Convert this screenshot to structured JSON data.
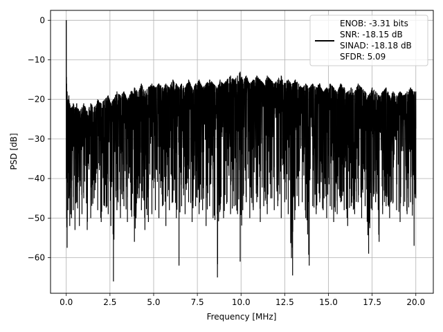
{
  "chart_data": {
    "type": "line",
    "xlabel": "Frequency [MHz]",
    "ylabel": "PSD [dB]",
    "xlim": [
      -0.9,
      21.0
    ],
    "ylim": [
      -69,
      2.5
    ],
    "x_ticks": [
      0.0,
      2.5,
      5.0,
      7.5,
      10.0,
      12.5,
      15.0,
      17.5,
      20.0
    ],
    "x_tick_labels": [
      "0.0",
      "2.5",
      "5.0",
      "7.5",
      "10.0",
      "12.5",
      "15.0",
      "17.5",
      "20.0"
    ],
    "y_ticks": [
      0,
      -10,
      -20,
      -30,
      -40,
      -50,
      -60
    ],
    "y_tick_labels": [
      "0",
      "−10",
      "−20",
      "−30",
      "−40",
      "−50",
      "−60"
    ],
    "grid": true,
    "legend_position": "top-right",
    "series": [
      {
        "name": "ENOB: -3.31 bits",
        "color": "#000000",
        "description_lines": [
          "ENOB: -3.31 bits",
          "SNR: -18.15 dB",
          "SINAD: -18.18 dB",
          "SFDR: 5.09"
        ],
        "x": [
          0.0,
          0.02,
          0.05,
          0.1,
          0.15,
          0.2,
          0.3,
          0.4,
          0.5,
          0.6,
          0.75,
          0.9,
          1.0,
          1.2,
          1.4,
          1.6,
          1.8,
          2.0,
          2.2,
          2.4,
          2.55,
          2.7,
          2.9,
          3.1,
          3.3,
          3.5,
          3.7,
          3.9,
          4.1,
          4.3,
          4.5,
          4.7,
          4.9,
          5.1,
          5.3,
          5.5,
          5.7,
          5.9,
          6.1,
          6.3,
          6.45,
          6.6,
          6.8,
          7.0,
          7.2,
          7.4,
          7.6,
          7.8,
          8.0,
          8.2,
          8.4,
          8.65,
          8.8,
          9.0,
          9.2,
          9.4,
          9.6,
          9.8,
          9.95,
          10.1,
          10.3,
          10.5,
          10.7,
          10.9,
          11.1,
          11.3,
          11.5,
          11.7,
          11.9,
          12.1,
          12.3,
          12.5,
          12.7,
          12.95,
          13.1,
          13.3,
          13.5,
          13.7,
          13.9,
          14.1,
          14.3,
          14.5,
          14.7,
          14.9,
          15.1,
          15.3,
          15.5,
          15.7,
          15.9,
          16.1,
          16.3,
          16.5,
          16.7,
          16.9,
          17.1,
          17.3,
          17.5,
          17.7,
          17.9,
          18.1,
          18.3,
          18.5,
          18.7,
          18.9,
          19.1,
          19.3,
          19.5,
          19.7,
          19.9,
          20.0
        ],
        "y_upper": [
          0.0,
          -16,
          -18,
          -20,
          -19,
          -21,
          -22,
          -21,
          -22,
          -21,
          -23,
          -22,
          -21,
          -23,
          -21,
          -22,
          -20,
          -21,
          -20,
          -19,
          -21,
          -20,
          -18,
          -19,
          -18,
          -20,
          -18,
          -17,
          -18,
          -16,
          -18,
          -17,
          -16,
          -17,
          -16,
          -17,
          -16,
          -17,
          -15,
          -16,
          -17,
          -16,
          -17,
          -15,
          -17,
          -16,
          -15,
          -17,
          -16,
          -15,
          -16,
          -17,
          -15,
          -16,
          -15,
          -14,
          -15,
          -14,
          -13,
          -15,
          -14,
          -16,
          -15,
          -14,
          -15,
          -16,
          -14,
          -15,
          -16,
          -15,
          -14,
          -16,
          -15,
          -16,
          -15,
          -16,
          -17,
          -16,
          -17,
          -16,
          -17,
          -16,
          -18,
          -17,
          -16,
          -17,
          -18,
          -16,
          -17,
          -18,
          -17,
          -18,
          -16,
          -17,
          -18,
          -19,
          -17,
          -18,
          -19,
          -18,
          -17,
          -19,
          -18,
          -19,
          -18,
          -19,
          -18,
          -17,
          -18,
          -18
        ],
        "y_lower": [
          -40,
          -50,
          -57.5,
          -48,
          -45,
          -52,
          -50,
          -48,
          -53,
          -46,
          -52,
          -49,
          -45,
          -53,
          -50,
          -45,
          -48,
          -51,
          -47,
          -49,
          -52,
          -66,
          -48,
          -50,
          -47,
          -51,
          -48,
          -56,
          -45,
          -48,
          -53,
          -51,
          -49,
          -48,
          -50,
          -47,
          -52,
          -48,
          -46,
          -50,
          -62,
          -47,
          -49,
          -46,
          -51,
          -47,
          -49,
          -48,
          -52,
          -47,
          -50,
          -65,
          -48,
          -50,
          -46,
          -49,
          -47,
          -49,
          -61,
          -48,
          -46,
          -50,
          -48,
          -46,
          -51,
          -47,
          -49,
          -45,
          -48,
          -47,
          -50,
          -46,
          -49,
          -64.5,
          -48,
          -47,
          -46,
          -50,
          -62,
          -47,
          -49,
          -46,
          -48,
          -50,
          -47,
          -51,
          -49,
          -46,
          -48,
          -52,
          -47,
          -49,
          -46,
          -50,
          -47,
          -59,
          -48,
          -46,
          -56,
          -49,
          -47,
          -50,
          -46,
          -48,
          -51,
          -47,
          -49,
          -46,
          -57,
          -45
        ]
      }
    ]
  }
}
